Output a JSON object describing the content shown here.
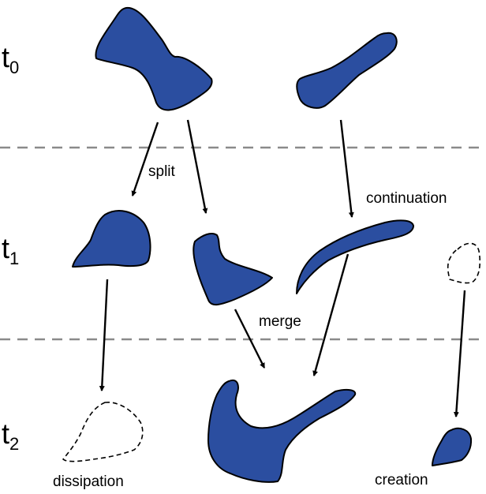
{
  "colors": {
    "blob_fill": "#2b4ea0",
    "outline": "#000000",
    "divider": "#8a8a8a",
    "background": "#ffffff"
  },
  "time_steps": [
    {
      "base": "t",
      "sub": "0"
    },
    {
      "base": "t",
      "sub": "1"
    },
    {
      "base": "t",
      "sub": "2"
    }
  ],
  "events": {
    "split": "split",
    "continuation": "continuation",
    "merge": "merge",
    "dissipation": "dissipation",
    "creation": "creation"
  }
}
